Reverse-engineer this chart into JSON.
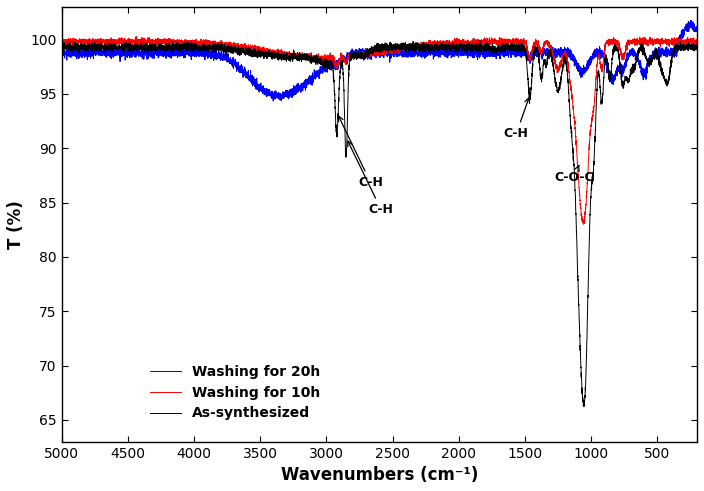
{
  "title": "",
  "xlabel": "Wavenumbers (cm⁻¹)",
  "ylabel": "T (%)",
  "xlim": [
    5000,
    200
  ],
  "ylim": [
    63,
    103
  ],
  "yticks": [
    65,
    70,
    75,
    80,
    85,
    90,
    95,
    100
  ],
  "xticks": [
    5000,
    4500,
    4000,
    3500,
    3000,
    2500,
    2000,
    1500,
    1000,
    500
  ],
  "legend_labels": [
    "As-synthesized",
    "Washing for 10h",
    "Washing for 20h"
  ],
  "legend_colors": [
    "black",
    "red",
    "blue"
  ],
  "background_color": "#ffffff",
  "noise_seed": 10
}
